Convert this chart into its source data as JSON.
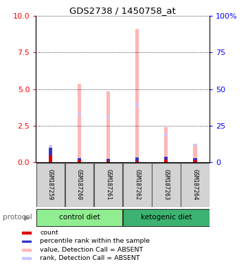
{
  "title": "GDS2738 / 1450758_at",
  "samples": [
    "GSM187259",
    "GSM187260",
    "GSM187261",
    "GSM187262",
    "GSM187263",
    "GSM187264"
  ],
  "groups": [
    {
      "name": "control diet",
      "color": "#90ee90",
      "indices": [
        0,
        1,
        2
      ]
    },
    {
      "name": "ketogenic diet",
      "color": "#3cb371",
      "indices": [
        3,
        4,
        5
      ]
    }
  ],
  "value_bars": [
    1.05,
    5.35,
    4.85,
    9.1,
    2.4,
    1.2
  ],
  "rank_vals": [
    1.1,
    3.25,
    3.1,
    3.95,
    1.85,
    1.2
  ],
  "count_vals": [
    0.5,
    0.15,
    0.12,
    0.12,
    0.18,
    0.15
  ],
  "rank_count_vals": [
    0.5,
    0.15,
    0.12,
    0.2,
    0.18,
    0.15
  ],
  "ylim_left": [
    0,
    10
  ],
  "ylim_right": [
    0,
    100
  ],
  "yticks_left": [
    0,
    2.5,
    5.0,
    7.5,
    10
  ],
  "yticks_right": [
    0,
    25,
    50,
    75,
    100
  ],
  "color_value_absent": "#ffb6b6",
  "color_rank_absent": "#c8c8ff",
  "color_count": "#dd0000",
  "color_rank": "#3333cc",
  "bar_width": 0.12,
  "rank_marker_size": 0.15,
  "legend_items": [
    {
      "color": "#dd0000",
      "label": "count"
    },
    {
      "color": "#3333cc",
      "label": "percentile rank within the sample"
    },
    {
      "color": "#ffb6b6",
      "label": "value, Detection Call = ABSENT"
    },
    {
      "color": "#c8c8ff",
      "label": "rank, Detection Call = ABSENT"
    }
  ]
}
